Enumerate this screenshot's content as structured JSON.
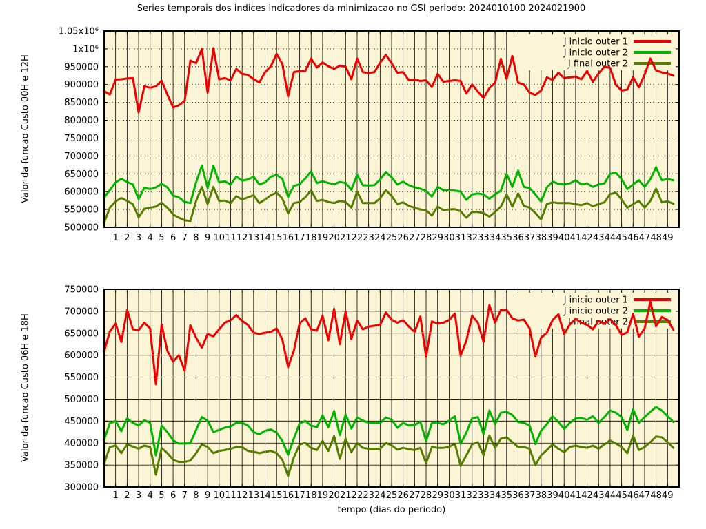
{
  "title": "Series temporais dos indices indicadores da minimizacao no GSI periodo: 2024010100 2024021900",
  "xlabel": "tempo (dias do periodo)",
  "colors": {
    "red": "#ee0000",
    "green": "#00b400",
    "olive": "#557d00",
    "plot_bg": "#fcf5d5",
    "border": "#000000",
    "text": "#000000"
  },
  "x_ticks": [
    1,
    2,
    3,
    4,
    5,
    6,
    7,
    8,
    9,
    10,
    11,
    12,
    13,
    14,
    15,
    16,
    17,
    18,
    19,
    20,
    21,
    22,
    23,
    24,
    25,
    26,
    27,
    28,
    29,
    30,
    31,
    32,
    33,
    34,
    35,
    36,
    37,
    38,
    39,
    40,
    41,
    42,
    43,
    44,
    45,
    46,
    47,
    48,
    49
  ],
  "chart_data": [
    {
      "type": "line",
      "panel": "top",
      "ylabel": "Valor da funcao Custo 00H e 12H",
      "ylim": [
        500000,
        1050000
      ],
      "ytick_step": 50000,
      "ytick_labels": [
        "500000",
        "550000",
        "600000",
        "650000",
        "700000",
        "750000",
        "800000",
        "850000",
        "900000",
        "950000",
        "1x10⁶",
        "1.05x10⁶"
      ],
      "xlim": [
        0,
        50
      ],
      "x_start": 0,
      "x_step": 0.5,
      "ygrid_style": "dotted",
      "legend_position": "top-right",
      "series": [
        {
          "name": "J inicio outer 1",
          "color": "#ee0000",
          "values": [
            882000,
            872000,
            914000,
            915000,
            917000,
            918000,
            822000,
            895000,
            891000,
            895000,
            911000,
            872000,
            836000,
            842000,
            854000,
            967000,
            960000,
            1000000,
            877000,
            1002000,
            915000,
            918000,
            912000,
            944000,
            930000,
            927000,
            915000,
            906000,
            935000,
            951000,
            986000,
            958000,
            867000,
            935000,
            938000,
            938000,
            973000,
            948000,
            962000,
            951000,
            944000,
            953000,
            950000,
            915000,
            973000,
            935000,
            932000,
            935000,
            961000,
            983000,
            960000,
            933000,
            935000,
            912000,
            914000,
            910000,
            912000,
            893000,
            930000,
            908000,
            910000,
            912000,
            910000,
            875000,
            900000,
            880000,
            862000,
            890000,
            905000,
            972000,
            916000,
            980000,
            905000,
            900000,
            877000,
            871000,
            883000,
            920000,
            913000,
            933000,
            918000,
            920000,
            922000,
            915000,
            938000,
            908000,
            931000,
            950000,
            947000,
            899000,
            883000,
            886000,
            921000,
            892000,
            928000,
            973000,
            940000,
            934000,
            931000,
            925000
          ]
        },
        {
          "name": "J inicio outer 2",
          "color": "#00b400",
          "values": [
            584000,
            604000,
            626000,
            636000,
            627000,
            620000,
            579000,
            611000,
            607000,
            612000,
            622000,
            612000,
            589000,
            584000,
            571000,
            568000,
            626000,
            673000,
            610000,
            672000,
            626000,
            629000,
            620000,
            642000,
            631000,
            634000,
            642000,
            620000,
            626000,
            642000,
            647000,
            636000,
            585000,
            616000,
            621000,
            637000,
            657000,
            624000,
            629000,
            624000,
            621000,
            627000,
            624000,
            605000,
            647000,
            618000,
            617000,
            618000,
            634000,
            655000,
            640000,
            620000,
            628000,
            618000,
            612000,
            608000,
            602000,
            586000,
            613000,
            604000,
            603000,
            603000,
            600000,
            577000,
            592000,
            595000,
            592000,
            580000,
            592000,
            603000,
            650000,
            613000,
            659000,
            613000,
            610000,
            592000,
            572000,
            612000,
            628000,
            622000,
            620000,
            623000,
            632000,
            620000,
            623000,
            613000,
            620000,
            623000,
            650000,
            653000,
            635000,
            607000,
            620000,
            632000,
            613000,
            635000,
            668000,
            632000,
            635000,
            632000
          ]
        },
        {
          "name": "J final outer 2",
          "color": "#557d00",
          "values": [
            513000,
            555000,
            573000,
            582000,
            574000,
            565000,
            528000,
            552000,
            555000,
            558000,
            569000,
            555000,
            536000,
            527000,
            520000,
            517000,
            574000,
            613000,
            565000,
            613000,
            574000,
            575000,
            568000,
            587000,
            578000,
            584000,
            590000,
            568000,
            578000,
            590000,
            597000,
            581000,
            539000,
            568000,
            571000,
            584000,
            604000,
            574000,
            577000,
            571000,
            568000,
            574000,
            571000,
            555000,
            600000,
            568000,
            568000,
            568000,
            581000,
            604000,
            588000,
            565000,
            570000,
            560000,
            555000,
            550000,
            548000,
            533000,
            558000,
            548000,
            550000,
            551000,
            545000,
            527000,
            543000,
            543000,
            540000,
            530000,
            543000,
            558000,
            592000,
            558000,
            595000,
            560000,
            555000,
            540000,
            522000,
            565000,
            570000,
            568000,
            568000,
            568000,
            565000,
            562000,
            568000,
            559000,
            565000,
            570000,
            593000,
            597000,
            578000,
            555000,
            565000,
            574000,
            555000,
            574000,
            608000,
            570000,
            573000,
            566000
          ]
        }
      ]
    },
    {
      "type": "line",
      "panel": "bottom",
      "ylabel": "Valor da funcao Custo 06H e 18H",
      "ylim": [
        300000,
        750000
      ],
      "ytick_step": 50000,
      "ytick_labels": [
        "300000",
        "350000",
        "400000",
        "450000",
        "500000",
        "550000",
        "600000",
        "650000",
        "700000",
        "750000"
      ],
      "xlim": [
        0,
        50
      ],
      "x_start": 0,
      "x_step": 0.5,
      "ygrid_style": "solid",
      "legend_position": "top-right",
      "series": [
        {
          "name": "J inicio outer 1",
          "color": "#ee0000",
          "values": [
            609000,
            654000,
            672000,
            630000,
            703000,
            659000,
            657000,
            674000,
            661000,
            534000,
            670000,
            610000,
            585000,
            600000,
            565000,
            668000,
            640000,
            617000,
            648000,
            643000,
            659000,
            674000,
            680000,
            691000,
            678000,
            669000,
            651000,
            648000,
            651000,
            653000,
            661000,
            636000,
            573000,
            610000,
            673000,
            684000,
            659000,
            656000,
            690000,
            634000,
            706000,
            625000,
            700000,
            637000,
            679000,
            659000,
            665000,
            667000,
            669000,
            697000,
            681000,
            674000,
            680000,
            665000,
            653000,
            688000,
            596000,
            677000,
            672000,
            674000,
            680000,
            695000,
            599000,
            633000,
            690000,
            674000,
            630000,
            714000,
            674000,
            703000,
            703000,
            684000,
            679000,
            681000,
            661000,
            597000,
            640000,
            651000,
            680000,
            693000,
            648000,
            670000,
            683000,
            674000,
            669000,
            659000,
            678000,
            672000,
            682000,
            668000,
            646000,
            652000,
            694000,
            642000,
            661000,
            722000,
            666000,
            687000,
            680000,
            658000
          ]
        },
        {
          "name": "J inicio outer 2",
          "color": "#00b400",
          "values": [
            408000,
            445000,
            450000,
            427000,
            456000,
            446000,
            440000,
            452000,
            446000,
            372000,
            440000,
            425000,
            406000,
            399000,
            399000,
            400000,
            430000,
            459000,
            451000,
            425000,
            430000,
            435000,
            438000,
            446000,
            446000,
            440000,
            425000,
            420000,
            428000,
            431000,
            424000,
            405000,
            373000,
            410000,
            445000,
            450000,
            440000,
            436000,
            463000,
            436000,
            473000,
            418000,
            465000,
            433000,
            458000,
            451000,
            446000,
            446000,
            446000,
            458000,
            453000,
            435000,
            446000,
            440000,
            441000,
            449000,
            404000,
            446000,
            446000,
            443000,
            451000,
            461000,
            398000,
            424000,
            456000,
            459000,
            420000,
            474000,
            443000,
            469000,
            471000,
            464000,
            448000,
            446000,
            440000,
            398000,
            428000,
            443000,
            461000,
            448000,
            432000,
            446000,
            456000,
            457000,
            453000,
            461000,
            446000,
            459000,
            474000,
            469000,
            459000,
            430000,
            477000,
            446000,
            459000,
            471000,
            482000,
            474000,
            461000,
            448000
          ]
        },
        {
          "name": "J final outer 2",
          "color": "#557d00",
          "values": [
            353000,
            391000,
            394000,
            377000,
            397000,
            392000,
            387000,
            394000,
            391000,
            328000,
            389000,
            377000,
            362000,
            357000,
            357000,
            360000,
            377000,
            397000,
            391000,
            377000,
            382000,
            384000,
            387000,
            391000,
            391000,
            382000,
            380000,
            377000,
            380000,
            382000,
            377000,
            362000,
            325000,
            367000,
            397000,
            400000,
            389000,
            384000,
            405000,
            382000,
            416000,
            364000,
            410000,
            379000,
            400000,
            389000,
            387000,
            387000,
            387000,
            400000,
            395000,
            385000,
            389000,
            386000,
            384000,
            389000,
            354000,
            391000,
            389000,
            389000,
            391000,
            399000,
            348000,
            372000,
            397000,
            402000,
            372000,
            417000,
            389000,
            410000,
            413000,
            402000,
            391000,
            391000,
            387000,
            350000,
            372000,
            384000,
            397000,
            387000,
            379000,
            391000,
            394000,
            391000,
            389000,
            394000,
            387000,
            397000,
            406000,
            399000,
            391000,
            377000,
            417000,
            384000,
            391000,
            402000,
            415000,
            413000,
            402000,
            389000
          ]
        }
      ]
    }
  ]
}
